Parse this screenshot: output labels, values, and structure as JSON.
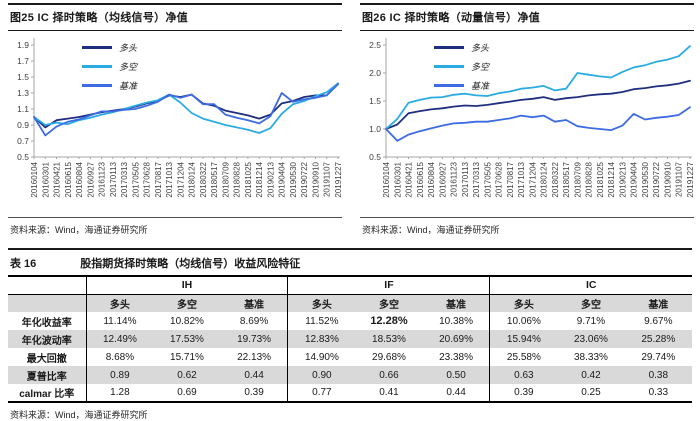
{
  "colors": {
    "long": "#1f2e7e",
    "longshort": "#2aace2",
    "benchmark": "#3d6be4",
    "header_gray": "#d9d9d9"
  },
  "figures": [
    {
      "title": "图25 IC 择时策略（均线信号）净值",
      "source": "资料来源：Wind，海通证券研究所",
      "chart_data": {
        "type": "line",
        "title": "IC 择时策略（均线信号）净值",
        "ylim": [
          0.5,
          1.9
        ],
        "yticks": [
          0.5,
          0.7,
          0.9,
          1.1,
          1.3,
          1.5,
          1.7,
          1.9
        ],
        "grid": false,
        "legend_position": "top-left",
        "x_labels": [
          "20160104",
          "20160301",
          "20160421",
          "20160615",
          "20160804",
          "20160927",
          "20161123",
          "20170113",
          "20170313",
          "20170505",
          "20170628",
          "20170817",
          "20171013",
          "20171204",
          "20180124",
          "20180322",
          "20180517",
          "20180709",
          "20180828",
          "20181025",
          "20181214",
          "20190213",
          "20190404",
          "20190530",
          "20190722",
          "20190910",
          "20191107",
          "20191227"
        ],
        "series": [
          {
            "name": "多头",
            "color": "long",
            "values": [
              1.0,
              0.87,
              0.96,
              0.98,
              1.0,
              1.03,
              1.06,
              1.08,
              1.1,
              1.13,
              1.17,
              1.2,
              1.27,
              1.25,
              1.28,
              1.17,
              1.14,
              1.08,
              1.05,
              1.02,
              0.98,
              1.03,
              1.17,
              1.2,
              1.25,
              1.27,
              1.27,
              1.42
            ]
          },
          {
            "name": "多空",
            "color": "longshort",
            "values": [
              1.0,
              0.9,
              0.93,
              0.91,
              0.96,
              0.99,
              1.03,
              1.06,
              1.1,
              1.14,
              1.18,
              1.21,
              1.28,
              1.18,
              1.05,
              0.98,
              0.94,
              0.9,
              0.87,
              0.84,
              0.8,
              0.86,
              1.04,
              1.16,
              1.2,
              1.26,
              1.31,
              1.42
            ]
          },
          {
            "name": "基准",
            "color": "benchmark",
            "values": [
              1.0,
              0.77,
              0.88,
              0.94,
              0.97,
              1.02,
              1.07,
              1.07,
              1.09,
              1.1,
              1.14,
              1.19,
              1.28,
              1.24,
              1.28,
              1.16,
              1.16,
              1.03,
              0.99,
              0.96,
              0.92,
              1.01,
              1.3,
              1.19,
              1.22,
              1.24,
              1.27,
              1.41
            ]
          }
        ]
      }
    },
    {
      "title": "图26 IC 择时策略（动量信号）净值",
      "source": "资料来源：Wind，海通证券研究所",
      "chart_data": {
        "type": "line",
        "title": "IC 择时策略（动量信号）净值",
        "ylim": [
          0.5,
          2.5
        ],
        "yticks": [
          0.5,
          1.0,
          1.5,
          2.0,
          2.5
        ],
        "grid": false,
        "legend_position": "top-left",
        "x_labels": [
          "20160104",
          "20160301",
          "20160421",
          "20160615",
          "20160804",
          "20160927",
          "20161123",
          "20170113",
          "20170313",
          "20170505",
          "20170628",
          "20170817",
          "20171013",
          "20171204",
          "20180124",
          "20180322",
          "20180517",
          "20180709",
          "20180828",
          "20181025",
          "20181214",
          "20190213",
          "20190404",
          "20190530",
          "20190722",
          "20190910",
          "20191107",
          "20191227"
        ],
        "series": [
          {
            "name": "多头",
            "color": "long",
            "values": [
              1.0,
              1.08,
              1.28,
              1.32,
              1.35,
              1.37,
              1.4,
              1.42,
              1.41,
              1.43,
              1.46,
              1.49,
              1.52,
              1.54,
              1.57,
              1.52,
              1.55,
              1.57,
              1.6,
              1.62,
              1.63,
              1.66,
              1.71,
              1.73,
              1.76,
              1.78,
              1.81,
              1.86
            ]
          },
          {
            "name": "多空",
            "color": "longshort",
            "values": [
              1.0,
              1.18,
              1.47,
              1.52,
              1.56,
              1.57,
              1.61,
              1.63,
              1.6,
              1.59,
              1.64,
              1.67,
              1.72,
              1.74,
              1.77,
              1.69,
              1.72,
              2.0,
              1.97,
              1.94,
              1.92,
              2.02,
              2.1,
              2.14,
              2.2,
              2.24,
              2.3,
              2.48
            ]
          },
          {
            "name": "基准",
            "color": "benchmark",
            "values": [
              1.0,
              0.79,
              0.9,
              0.96,
              1.01,
              1.06,
              1.1,
              1.11,
              1.13,
              1.13,
              1.16,
              1.19,
              1.24,
              1.21,
              1.24,
              1.13,
              1.16,
              1.05,
              1.02,
              1.0,
              0.98,
              1.06,
              1.27,
              1.17,
              1.2,
              1.22,
              1.25,
              1.39
            ]
          }
        ]
      }
    }
  ],
  "table": {
    "label": "表 16",
    "title": "股指期货择时策略（均线信号）收益风险特征",
    "groups": [
      "IH",
      "IF",
      "IC"
    ],
    "subheaders": [
      "多头",
      "多空",
      "基准"
    ],
    "rows": [
      {
        "label": "年化收益率",
        "values": [
          "11.14%",
          "10.82%",
          "8.69%",
          "11.52%",
          "12.28%",
          "10.38%",
          "10.06%",
          "9.71%",
          "9.67%"
        ]
      },
      {
        "label": "年化波动率",
        "values": [
          "12.49%",
          "17.53%",
          "19.73%",
          "12.83%",
          "18.53%",
          "20.69%",
          "15.94%",
          "23.06%",
          "25.28%"
        ]
      },
      {
        "label": "最大回撤",
        "values": [
          "8.68%",
          "15.71%",
          "22.13%",
          "14.90%",
          "29.68%",
          "23.38%",
          "25.58%",
          "38.33%",
          "29.74%"
        ]
      },
      {
        "label": "夏普比率",
        "values": [
          "0.89",
          "0.62",
          "0.44",
          "0.90",
          "0.66",
          "0.50",
          "0.63",
          "0.42",
          "0.38"
        ]
      },
      {
        "label": "calmar 比率",
        "values": [
          "1.28",
          "0.69",
          "0.39",
          "0.77",
          "0.41",
          "0.44",
          "0.39",
          "0.25",
          "0.33"
        ]
      }
    ],
    "emphasis": {
      "row": 0,
      "col": 4
    },
    "source": "资料来源：Wind，海通证券研究所"
  }
}
